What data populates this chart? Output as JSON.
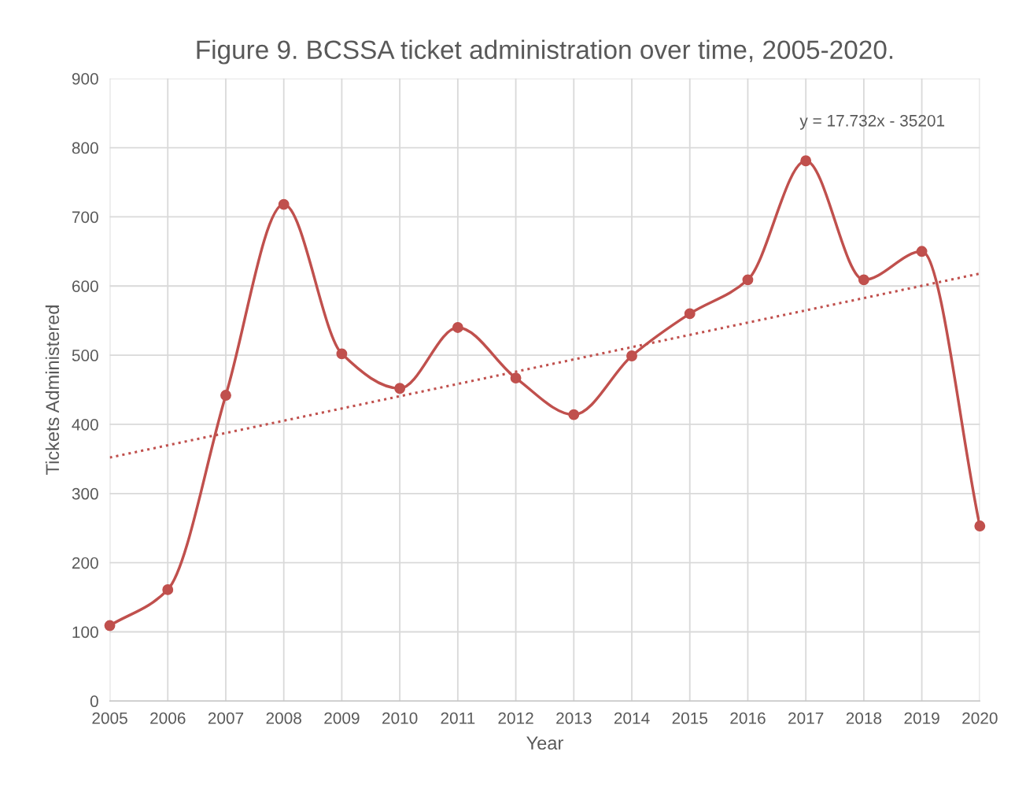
{
  "chart_data": {
    "type": "line",
    "title": "Figure 9. BCSSA ticket administration over time, 2005-2020.",
    "xlabel": "Year",
    "ylabel": "Tickets Administered",
    "x": [
      2005,
      2006,
      2007,
      2008,
      2009,
      2010,
      2011,
      2012,
      2013,
      2014,
      2015,
      2016,
      2017,
      2018,
      2019,
      2020
    ],
    "series": [
      {
        "color": "#c0504d",
        "marker": "circle",
        "line_style": "solid",
        "values": [
          109,
          161,
          442,
          718,
          502,
          452,
          540,
          467,
          414,
          499,
          560,
          609,
          781,
          609,
          650,
          253
        ]
      },
      {
        "type": "line",
        "color": "#c0504d",
        "marker": "none",
        "line_style": "dotted",
        "x": [
          2005,
          2020
        ],
        "values": [
          352,
          618
        ]
      }
    ],
    "annotations": [
      "y = 17.732x - 35201"
    ],
    "xlim": [
      2005,
      2020
    ],
    "xticks": [
      2005,
      2006,
      2007,
      2008,
      2009,
      2010,
      2011,
      2012,
      2013,
      2014,
      2015,
      2016,
      2017,
      2018,
      2019,
      2020
    ],
    "ylim": [
      0,
      900
    ],
    "yticks": [
      0,
      100,
      200,
      300,
      400,
      500,
      600,
      700,
      800,
      900
    ],
    "grid": true,
    "legend": false
  }
}
